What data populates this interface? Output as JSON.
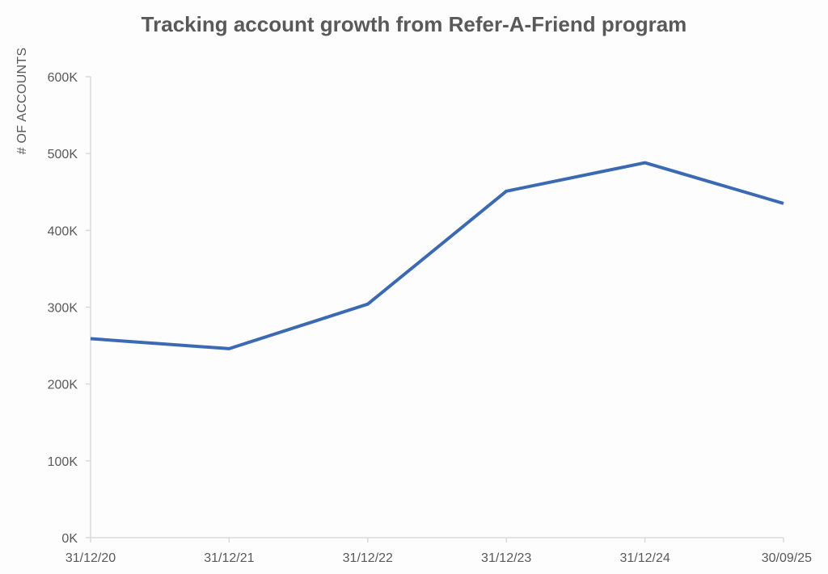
{
  "chart_data": {
    "type": "line",
    "title": "Tracking account growth from Refer-A-Friend program",
    "xlabel": "",
    "ylabel": "# OF ACCOUNTS",
    "categories": [
      "31/12/20",
      "31/12/21",
      "31/12/22",
      "31/12/23",
      "31/12/24",
      "30/09/25"
    ],
    "y_ticks": [
      0,
      100000,
      200000,
      300000,
      400000,
      500000,
      600000
    ],
    "y_tick_labels": [
      "0K",
      "100K",
      "200K",
      "300K",
      "400K",
      "500K",
      "600K"
    ],
    "ylim": [
      0,
      600000
    ],
    "grid": false,
    "legend": "none",
    "series": [
      {
        "values": [
          259000,
          246000,
          304000,
          451000,
          488000,
          435000
        ],
        "color": "#3b6ab3"
      }
    ]
  }
}
